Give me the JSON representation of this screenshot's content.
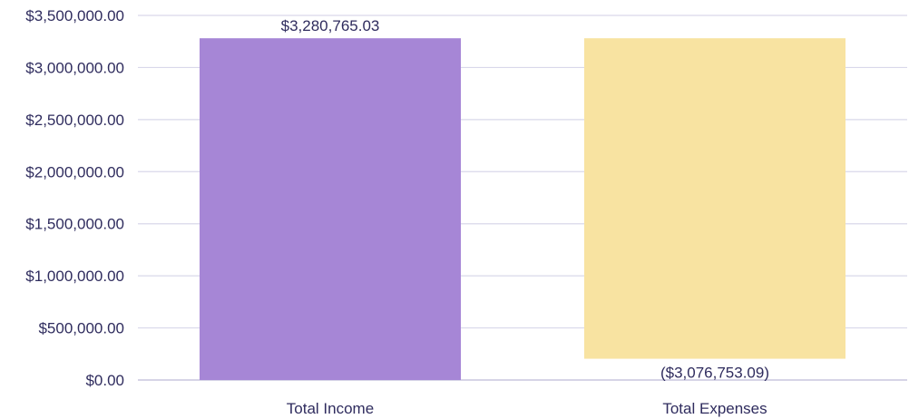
{
  "chart_data": {
    "type": "bar",
    "title": "",
    "xlabel": "",
    "ylabel": "",
    "categories": [
      "Total Income",
      "Total Expenses"
    ],
    "bars": [
      {
        "category": "Total Income",
        "start": 0,
        "end": 3280765.03,
        "label": "$3,280,765.03",
        "color": "#a686d6"
      },
      {
        "category": "Total Expenses",
        "start": 3280765.03,
        "end": 204011.94,
        "label": "($3,076,753.09)",
        "color": "#f8e3a1"
      }
    ],
    "ylim": [
      0,
      3500000
    ],
    "y_ticks": [
      0,
      500000,
      1000000,
      1500000,
      2000000,
      2500000,
      3000000,
      3500000
    ],
    "y_tick_labels": [
      "$0.00",
      "$500,000.00",
      "$1,000,000.00",
      "$1,500,000.00",
      "$2,000,000.00",
      "$2,500,000.00",
      "$3,000,000.00",
      "$3,500,000.00"
    ],
    "grid": true,
    "legend": "none",
    "colors": {
      "grid": "#d9d8ea",
      "text": "#2f2c5e"
    }
  }
}
